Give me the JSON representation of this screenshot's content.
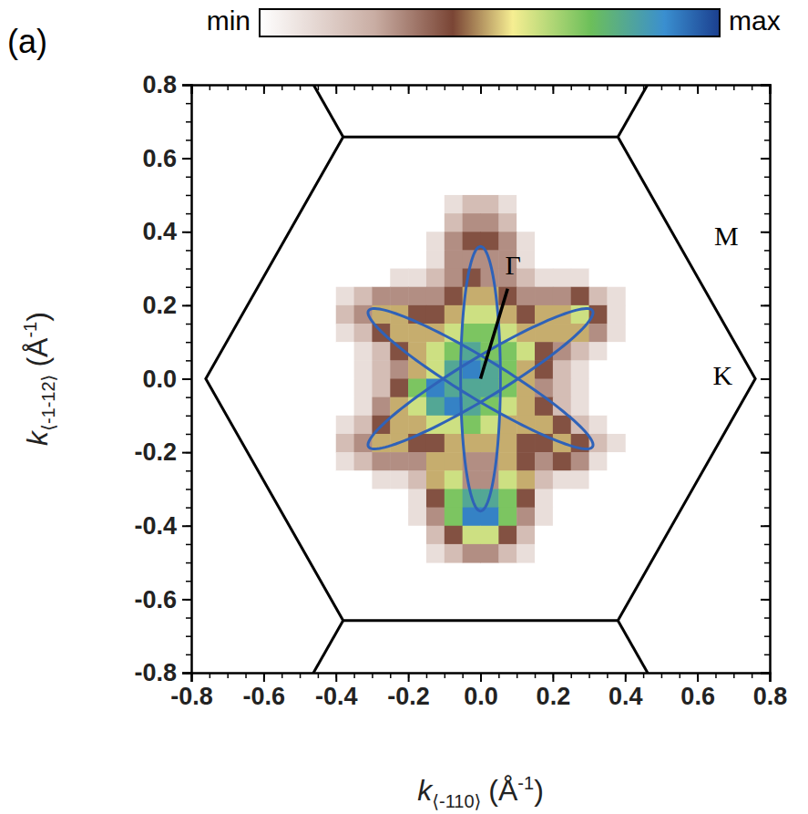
{
  "chart_data": {
    "type": "heatmap",
    "panel_label": "(a)",
    "xlabel": {
      "symbol": "k",
      "subscript": "⟨-110⟩",
      "unit": "(Å",
      "exponent": "-1",
      "unit_end": ")"
    },
    "ylabel": {
      "symbol": "k",
      "subscript": "⟨-1-12⟩",
      "unit": "(Å",
      "exponent": "-1",
      "unit_end": ")"
    },
    "xlim": [
      -0.8,
      0.8
    ],
    "ylim": [
      -0.8,
      0.8
    ],
    "xticks": [
      -0.8,
      -0.6,
      -0.4,
      -0.2,
      {
        "value": 0,
        "label": "0.0"
      },
      0.2,
      0.4,
      0.6,
      0.8
    ],
    "yticks": [
      -0.8,
      -0.6,
      -0.4,
      -0.2,
      {
        "value": 0,
        "label": "0.0"
      },
      0.2,
      0.4,
      0.6,
      0.8
    ],
    "minor_ticks": [
      -0.8,
      -0.75,
      -0.7,
      -0.65,
      -0.6,
      -0.55,
      -0.5,
      -0.45,
      -0.4,
      -0.35,
      -0.3,
      -0.25,
      -0.2,
      -0.15,
      -0.1,
      -0.05,
      0,
      0.05,
      0.1,
      0.15,
      0.2,
      0.25,
      0.3,
      0.35,
      0.4,
      0.45,
      0.5,
      0.55,
      0.6,
      0.65,
      0.7,
      0.75,
      0.8
    ],
    "clim": [
      0,
      10
    ],
    "cticks": [
      {
        "value": 0,
        "label": "min"
      },
      {
        "value": 10,
        "label": "max"
      }
    ],
    "x_edges": [
      -0.4,
      -0.35,
      -0.3,
      -0.25,
      -0.2,
      -0.15,
      -0.1,
      -0.05,
      0,
      0.05,
      0.1,
      0.15,
      0.2,
      0.25,
      0.3,
      0.35,
      0.4
    ],
    "y_edges": [
      0.5,
      0.45,
      0.4,
      0.35,
      0.3,
      0.25,
      0.2,
      0.15,
      0.1,
      0.05,
      0,
      -0.05,
      -0.1,
      -0.15,
      -0.2,
      -0.25,
      -0.3,
      -0.35,
      -0.4,
      -0.45,
      -0.5
    ],
    "z": [
      [
        0,
        0,
        0,
        0,
        0,
        0,
        1,
        2,
        2,
        1,
        0,
        0,
        0,
        0,
        0,
        0
      ],
      [
        0,
        0,
        0,
        0,
        0,
        0,
        2,
        3,
        3,
        2,
        0,
        0,
        0,
        0,
        0,
        0
      ],
      [
        0,
        0,
        0,
        0,
        0,
        1,
        3,
        4,
        4,
        3,
        1,
        0,
        0,
        0,
        0,
        0
      ],
      [
        0,
        0,
        0,
        0,
        0,
        1,
        3,
        3,
        3,
        3,
        1,
        0,
        0,
        0,
        0,
        0
      ],
      [
        0,
        0,
        0,
        1,
        1,
        2,
        3,
        4,
        3,
        3,
        2,
        1,
        1,
        1,
        0,
        0
      ],
      [
        1,
        2,
        3,
        3,
        3,
        3,
        4,
        5,
        5,
        4,
        3,
        3,
        3,
        4,
        2,
        1
      ],
      [
        2,
        3,
        5,
        5,
        4,
        4,
        5,
        6,
        6,
        5,
        4,
        5,
        5,
        6,
        4,
        1
      ],
      [
        1,
        2,
        4,
        5,
        5,
        5,
        6,
        7,
        7,
        6,
        5,
        5,
        5,
        5,
        3,
        1
      ],
      [
        0,
        1,
        2,
        4,
        5,
        6,
        7,
        8,
        7,
        7,
        6,
        4,
        3,
        2,
        1,
        0
      ],
      [
        0,
        1,
        2,
        3,
        5,
        6,
        8,
        9,
        8,
        7,
        5,
        4,
        2,
        1,
        0,
        0
      ],
      [
        0,
        1,
        2,
        4,
        7,
        9,
        8,
        8,
        8,
        7,
        5,
        3,
        2,
        1,
        0,
        0
      ],
      [
        0,
        1,
        3,
        5,
        6,
        8,
        9,
        8,
        7,
        6,
        5,
        4,
        2,
        1,
        0,
        0
      ],
      [
        1,
        2,
        4,
        5,
        5,
        6,
        6,
        7,
        6,
        5,
        5,
        5,
        4,
        2,
        1,
        0
      ],
      [
        2,
        3,
        5,
        5,
        4,
        4,
        5,
        5,
        5,
        5,
        4,
        4,
        5,
        4,
        2,
        1
      ],
      [
        1,
        2,
        3,
        3,
        3,
        5,
        5,
        3,
        3,
        5,
        4,
        3,
        4,
        3,
        1,
        0
      ],
      [
        0,
        0,
        1,
        1,
        2,
        5,
        6,
        3,
        3,
        6,
        5,
        2,
        1,
        1,
        0,
        0
      ],
      [
        0,
        0,
        0,
        0,
        1,
        4,
        7,
        8,
        8,
        7,
        4,
        1,
        0,
        0,
        0,
        0
      ],
      [
        0,
        0,
        0,
        0,
        1,
        3,
        7,
        9,
        9,
        7,
        3,
        1,
        0,
        0,
        0,
        0
      ],
      [
        0,
        0,
        0,
        0,
        0,
        2,
        4,
        6,
        6,
        4,
        2,
        0,
        0,
        0,
        0,
        0
      ],
      [
        0,
        0,
        0,
        0,
        0,
        1,
        2,
        3,
        3,
        2,
        1,
        0,
        0,
        0,
        0,
        0
      ]
    ],
    "brillouin_zone": [
      [
        0.76,
        0
      ],
      [
        0.38,
        0.658
      ],
      [
        -0.38,
        0.658
      ],
      [
        -0.76,
        0
      ],
      [
        -0.38,
        -0.658
      ],
      [
        0.38,
        -0.658
      ]
    ],
    "zone_edges": [
      [
        [
          0.38,
          0.658
        ],
        [
          0.76,
          1.316
        ]
      ],
      [
        [
          -0.38,
          0.658
        ],
        [
          -0.76,
          1.316
        ]
      ],
      [
        [
          0.38,
          -0.658
        ],
        [
          0.76,
          -1.316
        ]
      ],
      [
        [
          -0.38,
          -0.658
        ],
        [
          -0.76,
          -1.316
        ]
      ]
    ],
    "ellipses": [
      {
        "center": [
          0,
          0
        ],
        "tip": [
          0,
          0.36
        ],
        "half_width": 0.055
      },
      {
        "center": [
          0,
          0
        ],
        "tip": [
          0.31,
          0.185
        ],
        "half_width": 0.055
      },
      {
        "center": [
          0,
          0
        ],
        "tip": [
          0.31,
          -0.185
        ],
        "half_width": 0.055
      }
    ],
    "annotations": [
      {
        "text": "Γ",
        "x": 0.09,
        "y": 0.3,
        "arrow_from": [
          0.075,
          0.245
        ],
        "arrow_to": [
          0,
          0
        ]
      },
      {
        "text": "M",
        "x": 0.68,
        "y": 0.38
      },
      {
        "text": "K",
        "x": 0.67,
        "y": 0.0
      }
    ]
  }
}
